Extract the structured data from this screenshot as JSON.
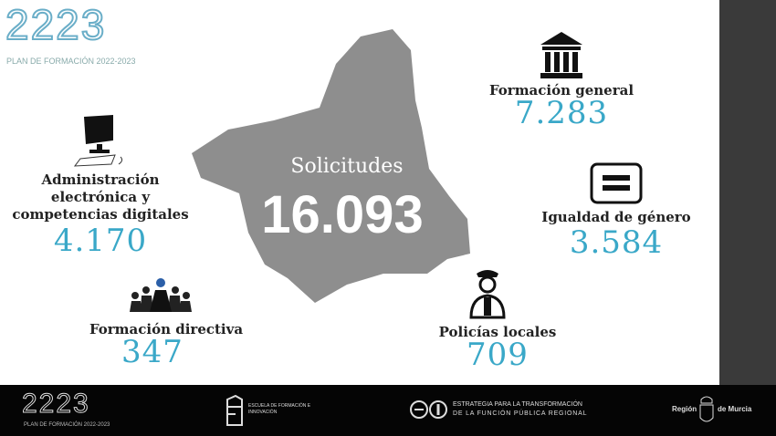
{
  "header": {
    "logo_text": "2223",
    "subtitle": "PLAN DE FORMACIÓN 2022-2023"
  },
  "center": {
    "label": "Solicitudes",
    "value": "16.093"
  },
  "items": [
    {
      "icon": "building-columns-icon",
      "label": "Formación general",
      "value": "7.283"
    },
    {
      "icon": "computer-icon",
      "label": "Administración electrónica y competencias digitales",
      "value": "4.170"
    },
    {
      "icon": "equals-icon",
      "label": "Igualdad de género",
      "value": "3.584"
    },
    {
      "icon": "group-icon",
      "label": "Formación directiva",
      "value": "347"
    },
    {
      "icon": "police-officer-icon",
      "label": "Policías locales",
      "value": "709"
    }
  ],
  "footer": {
    "logo_text": "2223",
    "logo_subtitle": "PLAN DE FORMACIÓN 2022-2023",
    "efi": "ESCUELA DE FORMACIÓN E INNOVACIÓN",
    "strategy_line1": "ESTRATEGIA PARA LA TRANSFORMACIÓN",
    "strategy_line2": "DE LA FUNCIÓN PÚBLICA REGIONAL",
    "region_left": "Región",
    "region_right": "de Murcia"
  },
  "colors": {
    "accent": "#3aa8c8",
    "map": "#8e8e8e",
    "footer": "#050505"
  }
}
